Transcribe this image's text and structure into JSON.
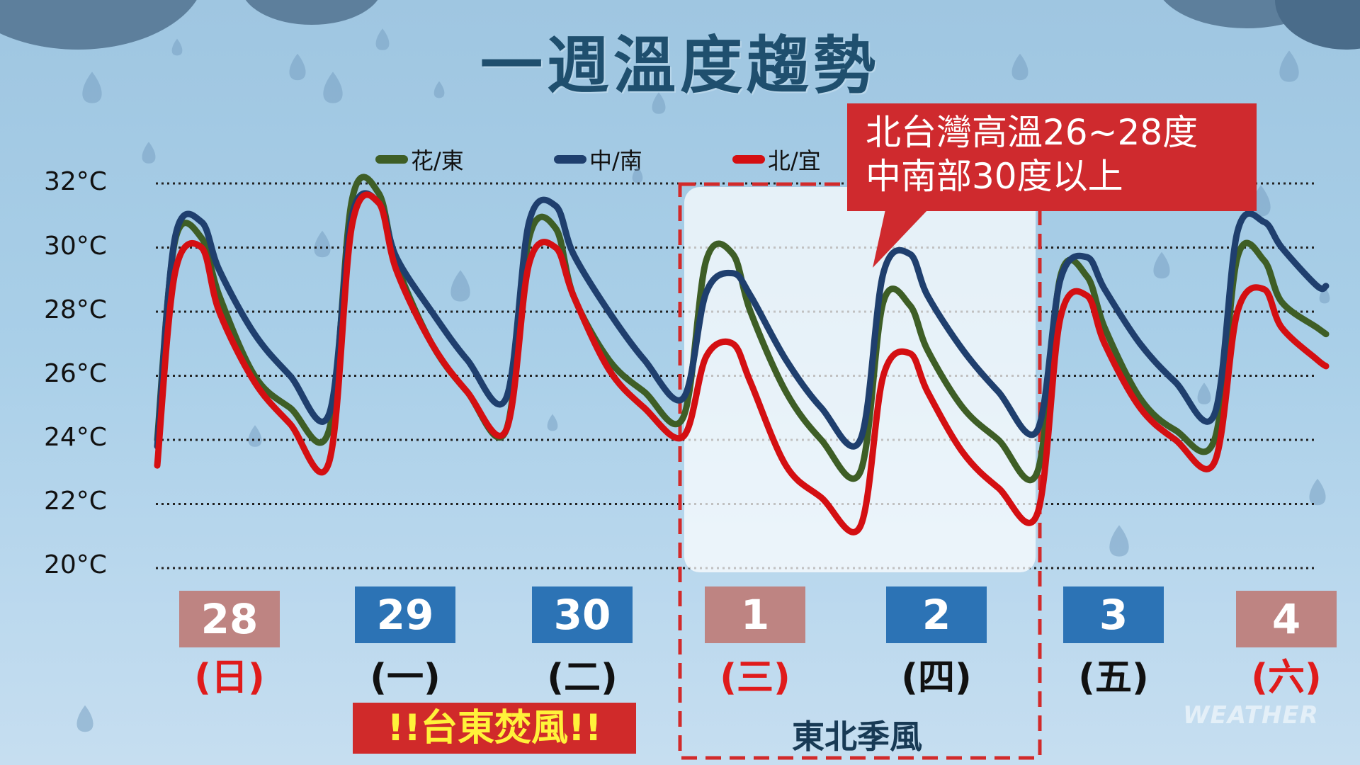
{
  "title": "一週溫度趨勢",
  "callout": {
    "line1": "北台灣高溫26~28度",
    "line2": "中南部30度以上"
  },
  "typhoon_banner": "!!台東焚風!!",
  "monsoon_label": "東北季風",
  "watermark": "WEATHER",
  "colors": {
    "hua_dong": "#3e5e26",
    "zhong_nan": "#1f3f6e",
    "bei_yi": "#d40f12",
    "weekend_box": "#be8482",
    "weekday_box": "#2c73b5"
  },
  "days": [
    {
      "date": "28",
      "weekday": "(日)",
      "weekend": true
    },
    {
      "date": "29",
      "weekday": "(一)",
      "weekend": false
    },
    {
      "date": "30",
      "weekday": "(二)",
      "weekend": false
    },
    {
      "date": "1",
      "weekday": "(三)",
      "weekend": true
    },
    {
      "date": "2",
      "weekday": "(四)",
      "weekend": false
    },
    {
      "date": "3",
      "weekday": "(五)",
      "weekend": false
    },
    {
      "date": "4",
      "weekday": "(六)",
      "weekend": true
    }
  ],
  "chart_data": {
    "type": "line",
    "title": "一週溫度趨勢",
    "ylim": [
      20,
      32
    ],
    "yticks": [
      "20°C",
      "22°C",
      "24°C",
      "26°C",
      "28°C",
      "30°C",
      "32°C"
    ],
    "grid": true,
    "legend_placement": "top",
    "x": [
      0,
      0.1,
      0.25,
      0.35,
      0.55,
      0.75,
      0.97,
      1.1,
      1.25,
      1.35,
      1.55,
      1.75,
      1.97,
      2.1,
      2.25,
      2.35,
      2.55,
      2.75,
      2.97,
      3.1,
      3.25,
      3.35,
      3.55,
      3.75,
      3.97,
      4.1,
      4.25,
      4.35,
      4.55,
      4.75,
      4.97,
      5.1,
      5.25,
      5.35,
      5.55,
      5.75,
      5.97,
      6.1,
      6.25,
      6.35,
      6.55,
      6.6
    ],
    "series": [
      {
        "name": "花/東",
        "values": [
          24,
          30.2,
          30.3,
          28.5,
          26,
          25,
          24.3,
          31.5,
          31.7,
          29.5,
          27,
          25.5,
          24.3,
          30.3,
          30.6,
          28.5,
          26.5,
          25.5,
          24.7,
          29.6,
          29.8,
          28,
          25.5,
          24,
          23,
          28.3,
          28.2,
          26.8,
          25,
          24,
          23,
          29.1,
          29.1,
          27.5,
          25.3,
          24.3,
          24,
          29.7,
          29.6,
          28.3,
          27.5,
          27.3
        ]
      },
      {
        "name": "中/南",
        "values": [
          23.8,
          30.3,
          30.8,
          29.3,
          27.3,
          26,
          24.8,
          31,
          31.4,
          29.7,
          28,
          26.5,
          25.3,
          30.8,
          31.3,
          29.8,
          28,
          26.5,
          25.3,
          28.6,
          29.2,
          28.5,
          26.5,
          25,
          24,
          29.2,
          29.8,
          28.5,
          26.8,
          25.5,
          24.3,
          29,
          29.7,
          28.7,
          27,
          25.8,
          24.8,
          30.5,
          30.8,
          30,
          28.8,
          28.8
        ]
      },
      {
        "name": "北/宜",
        "values": [
          23.2,
          29.2,
          30,
          28,
          25.8,
          24.5,
          23.3,
          30.7,
          31.4,
          29.3,
          27,
          25.5,
          24.3,
          29.5,
          30,
          28.5,
          26.2,
          25,
          24.1,
          26.6,
          27,
          25.8,
          23.2,
          22.2,
          21.3,
          26,
          26.7,
          25.5,
          23.6,
          22.5,
          21.7,
          27.8,
          28.5,
          27,
          25,
          24,
          23.3,
          28,
          28.7,
          27.5,
          26.5,
          26.3
        ]
      }
    ],
    "highlight_range": {
      "from": 3,
      "to": 5,
      "label": "東北季風"
    }
  }
}
